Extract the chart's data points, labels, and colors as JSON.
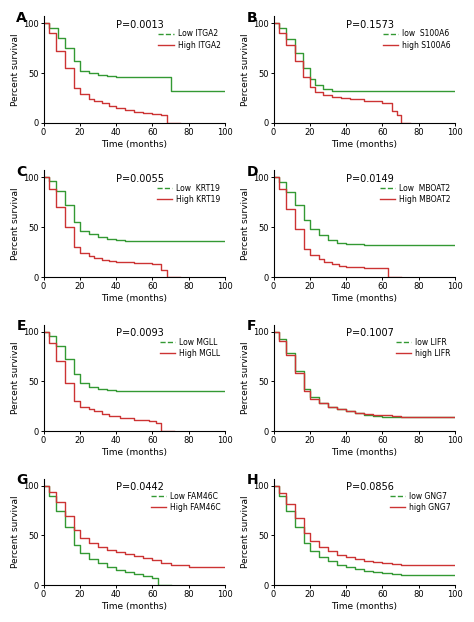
{
  "panels": [
    {
      "label": "A",
      "pval": "P=0.0013",
      "legend": [
        "Low ITGA2",
        "High ITGA2"
      ],
      "green_x": [
        0,
        3,
        8,
        12,
        17,
        20,
        25,
        30,
        35,
        40,
        45,
        50,
        55,
        60,
        65,
        70,
        75,
        80,
        85,
        90,
        95,
        100
      ],
      "green_y": [
        100,
        95,
        85,
        75,
        62,
        52,
        50,
        48,
        47,
        46,
        46,
        46,
        46,
        46,
        46,
        32,
        32,
        32,
        32,
        32,
        32,
        32
      ],
      "red_x": [
        0,
        3,
        7,
        12,
        17,
        20,
        25,
        28,
        32,
        36,
        40,
        45,
        50,
        55,
        60,
        65,
        68,
        70,
        75
      ],
      "red_y": [
        100,
        90,
        72,
        55,
        35,
        29,
        24,
        22,
        20,
        17,
        15,
        13,
        11,
        10,
        9,
        8,
        0,
        0,
        0
      ]
    },
    {
      "label": "B",
      "pval": "P=0.1573",
      "legend": [
        "low  S100A6",
        "high S100A6"
      ],
      "green_x": [
        0,
        3,
        7,
        12,
        16,
        20,
        23,
        27,
        32,
        37,
        42,
        50,
        60,
        70,
        80,
        90,
        100
      ],
      "green_y": [
        100,
        95,
        84,
        70,
        55,
        44,
        38,
        34,
        32,
        32,
        32,
        32,
        32,
        32,
        32,
        32,
        32
      ],
      "red_x": [
        0,
        3,
        7,
        12,
        16,
        20,
        23,
        27,
        32,
        37,
        42,
        50,
        60,
        65,
        68,
        70,
        75
      ],
      "red_y": [
        100,
        90,
        78,
        62,
        46,
        36,
        31,
        28,
        26,
        25,
        24,
        22,
        20,
        12,
        8,
        0,
        0
      ]
    },
    {
      "label": "C",
      "pval": "P=0.0055",
      "legend": [
        "Low  KRT19",
        "High KRT19"
      ],
      "green_x": [
        0,
        3,
        7,
        12,
        17,
        20,
        25,
        30,
        35,
        40,
        45,
        50,
        60,
        70,
        80,
        90,
        100
      ],
      "green_y": [
        100,
        96,
        86,
        72,
        55,
        46,
        43,
        40,
        38,
        37,
        36,
        36,
        36,
        36,
        36,
        36,
        36
      ],
      "red_x": [
        0,
        3,
        7,
        12,
        17,
        20,
        25,
        28,
        32,
        36,
        40,
        50,
        60,
        65,
        68,
        72,
        75
      ],
      "red_y": [
        100,
        88,
        70,
        50,
        30,
        24,
        21,
        19,
        17,
        16,
        15,
        14,
        13,
        7,
        0,
        0,
        0
      ]
    },
    {
      "label": "D",
      "pval": "P=0.0149",
      "legend": [
        "Low  MBOAT2",
        "High MBOAT2"
      ],
      "green_x": [
        0,
        3,
        7,
        12,
        17,
        20,
        25,
        30,
        35,
        40,
        50,
        60,
        70,
        75,
        80,
        90,
        100
      ],
      "green_y": [
        100,
        95,
        85,
        72,
        57,
        48,
        42,
        37,
        34,
        33,
        32,
        32,
        32,
        32,
        32,
        32,
        32
      ],
      "red_x": [
        0,
        3,
        7,
        12,
        17,
        20,
        25,
        28,
        32,
        36,
        40,
        50,
        60,
        63,
        65,
        70
      ],
      "red_y": [
        100,
        88,
        68,
        48,
        28,
        22,
        18,
        15,
        13,
        11,
        10,
        9,
        9,
        0,
        0,
        0
      ]
    },
    {
      "label": "E",
      "pval": "P=0.0093",
      "legend": [
        "Low MGLL",
        "High MGLL"
      ],
      "green_x": [
        0,
        3,
        7,
        12,
        17,
        20,
        25,
        30,
        35,
        40,
        45,
        50,
        60,
        70,
        80,
        90,
        100
      ],
      "green_y": [
        100,
        95,
        85,
        72,
        57,
        48,
        44,
        42,
        41,
        40,
        40,
        40,
        40,
        40,
        40,
        40,
        40
      ],
      "red_x": [
        0,
        3,
        7,
        12,
        17,
        20,
        25,
        28,
        32,
        36,
        42,
        50,
        58,
        62,
        65,
        68,
        72
      ],
      "red_y": [
        100,
        88,
        70,
        48,
        30,
        24,
        22,
        20,
        17,
        15,
        13,
        11,
        10,
        8,
        0,
        0,
        0
      ]
    },
    {
      "label": "F",
      "pval": "P=0.1007",
      "legend": [
        "low LIFR",
        "high LIFR"
      ],
      "green_x": [
        0,
        3,
        7,
        12,
        17,
        20,
        25,
        30,
        35,
        40,
        45,
        50,
        55,
        60,
        65,
        70,
        80,
        90,
        100
      ],
      "green_y": [
        100,
        92,
        78,
        60,
        42,
        34,
        28,
        24,
        22,
        20,
        18,
        16,
        15,
        14,
        14,
        14,
        14,
        14,
        14
      ],
      "red_x": [
        0,
        3,
        7,
        12,
        17,
        20,
        25,
        30,
        35,
        40,
        45,
        50,
        55,
        60,
        65,
        70,
        80,
        90,
        100
      ],
      "red_y": [
        100,
        90,
        76,
        58,
        40,
        32,
        28,
        24,
        22,
        20,
        18,
        17,
        16,
        16,
        15,
        14,
        14,
        14,
        14
      ]
    },
    {
      "label": "G",
      "pval": "P=0.0442",
      "legend": [
        "Low FAM46C",
        "High FAM46C"
      ],
      "green_x": [
        0,
        3,
        7,
        12,
        17,
        20,
        25,
        30,
        35,
        40,
        45,
        50,
        55,
        60,
        63,
        65,
        70
      ],
      "green_y": [
        100,
        90,
        75,
        58,
        40,
        32,
        26,
        22,
        18,
        15,
        13,
        11,
        9,
        7,
        0,
        0,
        0
      ],
      "red_x": [
        0,
        3,
        7,
        12,
        17,
        20,
        25,
        30,
        35,
        40,
        45,
        50,
        55,
        60,
        65,
        70,
        80,
        90,
        100
      ],
      "red_y": [
        100,
        94,
        84,
        70,
        55,
        47,
        42,
        38,
        35,
        33,
        31,
        29,
        27,
        25,
        22,
        20,
        18,
        18,
        18
      ]
    },
    {
      "label": "H",
      "pval": "P=0.0856",
      "legend": [
        "low GNG7",
        "high GNG7"
      ],
      "green_x": [
        0,
        3,
        7,
        12,
        17,
        20,
        25,
        30,
        35,
        40,
        45,
        50,
        55,
        60,
        65,
        70,
        80,
        90,
        100
      ],
      "green_y": [
        100,
        90,
        75,
        58,
        42,
        34,
        28,
        24,
        20,
        18,
        16,
        14,
        13,
        12,
        11,
        10,
        10,
        10,
        10
      ],
      "red_x": [
        0,
        3,
        7,
        12,
        17,
        20,
        25,
        30,
        35,
        40,
        45,
        50,
        55,
        60,
        65,
        70,
        80,
        90,
        100
      ],
      "red_y": [
        100,
        93,
        82,
        68,
        52,
        44,
        38,
        34,
        30,
        28,
        26,
        24,
        23,
        22,
        21,
        20,
        20,
        20,
        20
      ]
    }
  ],
  "green_color": "#339933",
  "red_color": "#cc3333",
  "ylabel": "Percent survival",
  "xlabel": "Time (months)",
  "xlim": [
    0,
    100
  ],
  "ylim": [
    0,
    107
  ],
  "yticks": [
    0,
    50,
    100
  ],
  "xticks": [
    0,
    20,
    40,
    60,
    80,
    100
  ]
}
